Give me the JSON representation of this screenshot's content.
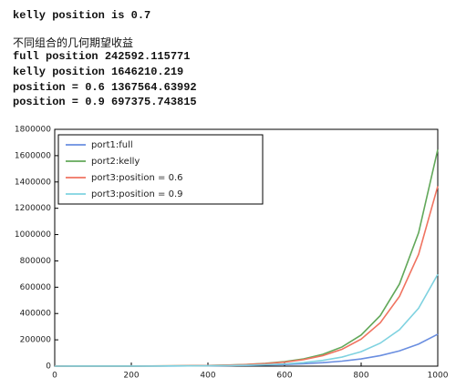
{
  "output_lines": [
    "kelly position is 0.7",
    "不同组合的几何期望收益",
    "full position 242592.115771",
    "kelly position 1646210.219",
    "position = 0.6 1367564.63992",
    "position = 0.9 697375.743815"
  ],
  "chart_data": {
    "type": "line",
    "x": [
      0,
      50,
      100,
      150,
      200,
      250,
      300,
      350,
      400,
      450,
      500,
      550,
      600,
      650,
      700,
      750,
      800,
      850,
      900,
      950,
      1000
    ],
    "series": [
      {
        "name": "port1:full",
        "color": "#6a8ee0",
        "values": [
          148,
          214,
          310,
          450,
          650,
          940,
          1360,
          1970,
          2850,
          4120,
          5970,
          8650,
          12500,
          18200,
          26300,
          38000,
          55000,
          80000,
          116000,
          168000,
          242592
        ]
      },
      {
        "name": "port2:kelly",
        "color": "#62a85a",
        "values": [
          101,
          164,
          267,
          433,
          703,
          1142,
          1855,
          3012,
          4892,
          7945,
          12900,
          20950,
          34030,
          55260,
          89740,
          145700,
          236700,
          384400,
          624200,
          1013700,
          1646210
        ]
      },
      {
        "name": "port3:position = 0.6",
        "color": "#f07360",
        "values": [
          110,
          175,
          280,
          450,
          720,
          1150,
          1850,
          2950,
          4700,
          7600,
          12100,
          19400,
          31000,
          50000,
          80000,
          128000,
          205000,
          330000,
          530000,
          850000,
          1367564
        ]
      },
      {
        "name": "port3:position = 0.9",
        "color": "#7fd2e0",
        "values": [
          67,
          107,
          170,
          270,
          430,
          680,
          1080,
          1710,
          2720,
          4300,
          6850,
          10900,
          17300,
          27500,
          43500,
          69000,
          110000,
          175000,
          277000,
          440000,
          697375
        ]
      }
    ],
    "xlim": [
      0,
      1000
    ],
    "xticks": [
      0,
      200,
      400,
      600,
      800,
      1000
    ],
    "ylim": [
      0,
      1800000
    ],
    "yticks": [
      0,
      200000,
      400000,
      600000,
      800000,
      1000000,
      1200000,
      1400000,
      1600000,
      1800000
    ],
    "legend": "upper left"
  }
}
